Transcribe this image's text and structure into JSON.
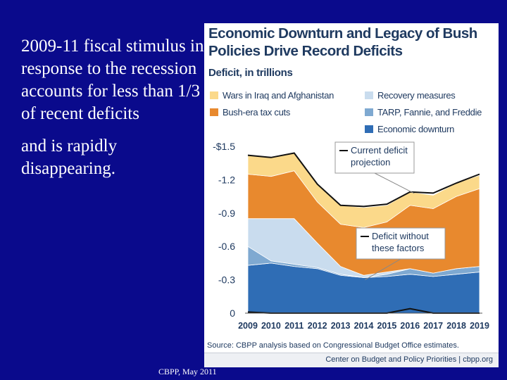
{
  "slide": {
    "bullet1": "2009-11 fiscal stimulus in response to the recession accounts for less than 1/3 of recent deficits",
    "bullet2": "and is rapidly disappearing.",
    "footer": "CBPP, May 2011"
  },
  "figure": {
    "title_line1": "Economic Downturn and Legacy of Bush",
    "title_line2": "Policies Drive Record Deficits",
    "source": "Source: CBPP analysis based on Congressional Budget Office estimates.",
    "credit": "Center on Budget and Policy Priorities | cbpp.org"
  },
  "chart_data": {
    "type": "area",
    "title": "Economic Downturn and Legacy of Bush Policies Drive Record Deficits",
    "ylabel": "Deficit, in trillions",
    "x": [
      "2009",
      "2010",
      "2011",
      "2012",
      "2013",
      "2014",
      "2015",
      "2016",
      "2017",
      "2018",
      "2019"
    ],
    "ylim": [
      0,
      1.5
    ],
    "y_ticks": [
      "0",
      "-0.3",
      "-0.6",
      "-0.9",
      "-1.2",
      "-$1.5"
    ],
    "stacked": true,
    "series": [
      {
        "name": "Economic downturn",
        "color": "#2f6db5",
        "values": [
          0.43,
          0.45,
          0.42,
          0.4,
          0.34,
          0.32,
          0.33,
          0.35,
          0.33,
          0.35,
          0.37
        ]
      },
      {
        "name": "TARP, Fannie, and Freddie",
        "color": "#7fa9d1",
        "values": [
          0.17,
          0.02,
          0.02,
          0.01,
          0.01,
          0.0,
          0.02,
          0.05,
          0.03,
          0.05,
          0.05
        ]
      },
      {
        "name": "Recovery measures",
        "color": "#c9dcee",
        "values": [
          0.25,
          0.38,
          0.41,
          0.22,
          0.07,
          0.02,
          0.02,
          0.0,
          0.0,
          0.0,
          0.0
        ]
      },
      {
        "name": "Bush-era tax cuts",
        "color": "#e8892e",
        "values": [
          0.4,
          0.38,
          0.43,
          0.37,
          0.38,
          0.43,
          0.45,
          0.57,
          0.58,
          0.65,
          0.7
        ]
      },
      {
        "name": "Wars in Iraq and Afghanistan",
        "color": "#fbd98a",
        "values": [
          0.17,
          0.17,
          0.16,
          0.16,
          0.17,
          0.18,
          0.15,
          0.12,
          0.12,
          0.12,
          0.12
        ]
      }
    ],
    "lines": [
      {
        "name": "Current deficit projection",
        "color": "#111111",
        "values": [
          1.42,
          1.4,
          1.44,
          1.16,
          0.97,
          0.96,
          0.98,
          1.09,
          1.08,
          1.17,
          1.25
        ]
      },
      {
        "name": "Deficit without these factors",
        "color": "#111111",
        "values": [
          0.01,
          0.0,
          0.0,
          0.0,
          0.0,
          0.0,
          0.0,
          0.04,
          0.0,
          0.0,
          0.0
        ]
      }
    ],
    "annotations": [
      {
        "text_line1": "Current deficit",
        "text_line2": "projection"
      },
      {
        "text_line1": "Deficit without",
        "text_line2": "these factors"
      }
    ],
    "legend_placement": "top",
    "grid": false
  }
}
